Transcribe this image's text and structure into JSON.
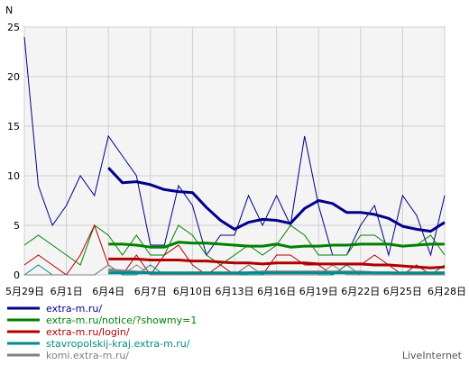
{
  "chart_data": {
    "type": "line",
    "ylabel": "N",
    "ylim": [
      0,
      25
    ],
    "yticks": [
      "0",
      "5",
      "10",
      "15",
      "20",
      "25"
    ],
    "x_labels": [
      "5月29日",
      "6月1日",
      "6月4日",
      "6月7日",
      "6月10日",
      "6月13日",
      "6月16日",
      "6月19日",
      "6月22日",
      "6月25日",
      "6月28日"
    ],
    "x_label_index": [
      0,
      3,
      6,
      9,
      12,
      15,
      18,
      21,
      24,
      27,
      30
    ],
    "grid": true,
    "legend_position": "bottom-left",
    "series": [
      {
        "name": "extra-m.ru/",
        "color": "#00008b",
        "values": [
          24,
          9,
          5,
          7,
          10,
          8,
          14,
          12,
          10,
          3,
          3,
          9,
          7,
          2,
          4,
          4,
          8,
          5,
          8,
          5,
          14,
          7,
          2,
          2,
          5,
          7,
          2,
          8,
          6,
          2,
          8
        ],
        "avg_start": 6,
        "avg": [
          10.8,
          9.3,
          9.4,
          9.1,
          8.6,
          8.4,
          8.3,
          6.8,
          5.5,
          4.6,
          5.3,
          5.6,
          5.5,
          5.2,
          6.7,
          7.5,
          7.2,
          6.3,
          6.3,
          6.1,
          5.7,
          4.9,
          4.6,
          4.4,
          5.3
        ]
      },
      {
        "name": "extra-m.ru/notice/?showmy=1",
        "color": "#008000",
        "values": [
          3,
          4,
          3,
          2,
          1,
          5,
          4,
          2,
          4,
          2,
          2,
          5,
          4,
          2,
          1,
          2,
          3,
          2,
          3,
          5,
          4,
          2,
          2,
          2,
          4,
          4,
          3,
          3,
          3,
          4,
          2
        ],
        "avg_start": 6,
        "avg": [
          3.1,
          3.1,
          3.0,
          2.8,
          2.8,
          3.3,
          3.2,
          3.2,
          3.1,
          3.0,
          2.9,
          2.9,
          3.1,
          2.8,
          2.9,
          2.9,
          3.0,
          3.0,
          3.1,
          3.1,
          3.1,
          2.9,
          3.0,
          3.1,
          3.1
        ]
      },
      {
        "name": "extra-m.ru/login/",
        "color": "#b20000",
        "values": [
          1,
          2,
          1,
          0,
          2,
          5,
          1,
          0,
          2,
          0,
          2,
          3,
          1,
          0,
          1,
          0,
          1,
          0,
          2,
          2,
          1,
          1,
          0,
          1,
          1,
          2,
          1,
          0,
          1,
          0,
          1
        ],
        "avg_start": 6,
        "avg": [
          1.6,
          1.6,
          1.6,
          1.5,
          1.5,
          1.5,
          1.4,
          1.4,
          1.3,
          1.2,
          1.2,
          1.1,
          1.2,
          1.2,
          1.2,
          1.1,
          1.1,
          1.1,
          1.1,
          1.0,
          1.0,
          0.9,
          0.8,
          0.7,
          0.8
        ]
      },
      {
        "name": "stavropolskij-kraj.extra-m.ru/",
        "color": "#008b8b",
        "values": [
          0,
          1,
          0,
          0,
          0,
          0,
          1,
          0,
          0,
          1,
          0,
          0,
          0,
          0,
          0,
          0,
          0,
          0,
          0,
          0,
          0,
          0,
          0,
          1,
          0,
          0,
          0,
          0,
          0,
          0,
          1
        ],
        "avg_start": 6,
        "avg": [
          0.2,
          0.2,
          0.2,
          0.2,
          0.2,
          0.2,
          0.2,
          0.2,
          0.2,
          0.2,
          0.2,
          0.2,
          0.2,
          0.2,
          0.2,
          0.2,
          0.2,
          0.2,
          0.2,
          0.2,
          0.2,
          0.2,
          0.2,
          0.2,
          0.2
        ]
      },
      {
        "name": "komi.extra-m.ru/",
        "color": "#808080",
        "values": [
          0,
          0,
          0,
          0,
          0,
          0,
          1,
          0,
          1,
          0,
          0,
          0,
          0,
          0,
          0,
          0,
          1,
          0,
          0,
          0,
          0,
          0,
          1,
          0,
          0,
          0,
          0,
          0,
          0,
          0,
          0
        ],
        "avg_start": 6,
        "avg": [
          0.5,
          0.4,
          0.3,
          0.2,
          0.1,
          0.1,
          0.1,
          0.1,
          0.1,
          0.1,
          0.2,
          0.3,
          0.3,
          0.3,
          0.3,
          0.3,
          0.3,
          0.3,
          0.3,
          0.2,
          0.2,
          0.1,
          0.1,
          0.1,
          0.1
        ]
      }
    ]
  },
  "credit": "LiveInternet"
}
